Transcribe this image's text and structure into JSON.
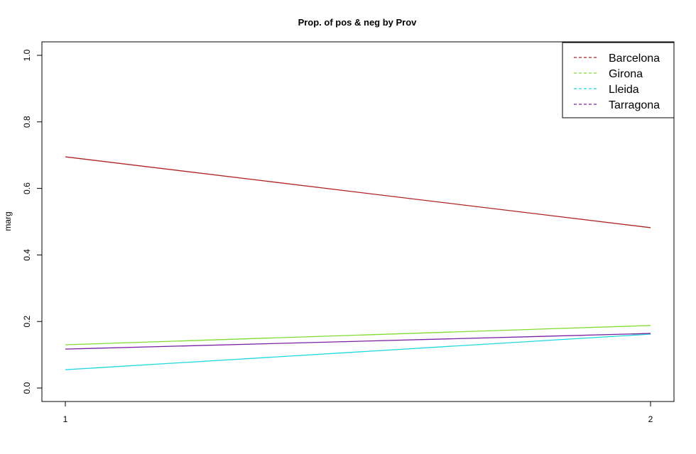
{
  "chart_data": {
    "type": "line",
    "title": "Prop. of pos & neg by Prov",
    "xlabel": "",
    "ylabel": "marg",
    "x": [
      1,
      2
    ],
    "xticks": [
      "1",
      "2"
    ],
    "ylim": [
      0.0,
      1.0
    ],
    "yticks": [
      "0.0",
      "0.2",
      "0.4",
      "0.6",
      "0.8",
      "1.0"
    ],
    "grid": false,
    "legend_position": "top-right",
    "series": [
      {
        "name": "Barcelona",
        "values": [
          0.695,
          0.482
        ],
        "color": "#b22222"
      },
      {
        "name": "Girona",
        "values": [
          0.13,
          0.188
        ],
        "color": "#7fdd2e"
      },
      {
        "name": "Lleida",
        "values": [
          0.055,
          0.162
        ],
        "color": "#1ed8e0"
      },
      {
        "name": "Tarragona",
        "values": [
          0.117,
          0.164
        ],
        "color": "#7b1fa2"
      }
    ]
  }
}
